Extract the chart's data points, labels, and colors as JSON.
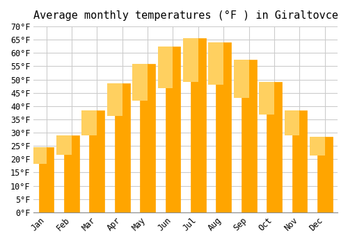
{
  "title": "Average monthly temperatures (°F ) in Giraltovce",
  "months": [
    "Jan",
    "Feb",
    "Mar",
    "Apr",
    "May",
    "Jun",
    "Jul",
    "Aug",
    "Sep",
    "Oct",
    "Nov",
    "Dec"
  ],
  "values": [
    24.5,
    29.0,
    38.5,
    48.5,
    56.0,
    62.5,
    65.5,
    64.0,
    57.5,
    49.0,
    38.5,
    28.5
  ],
  "bar_color": "#FFA500",
  "bar_edge_color": "#FFB733",
  "ylim": [
    0,
    70
  ],
  "yticks": [
    0,
    5,
    10,
    15,
    20,
    25,
    30,
    35,
    40,
    45,
    50,
    55,
    60,
    65,
    70
  ],
  "background_color": "#FFFFFF",
  "grid_color": "#CCCCCC",
  "title_fontsize": 11,
  "tick_fontsize": 8.5,
  "font_family": "monospace"
}
